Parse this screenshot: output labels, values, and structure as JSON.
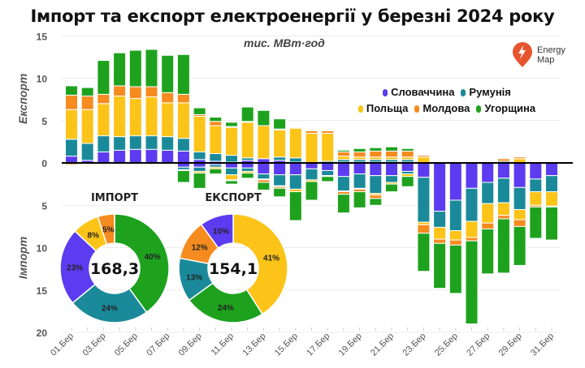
{
  "chart_data": {
    "type": "bar",
    "title": "Імпорт та експорт електроенергії у березні 2024 року",
    "unit": "тис. МВт·год",
    "ylabel_top": "Експорт",
    "ylabel_bottom": "Імпорт",
    "yticks_export": [
      0,
      5,
      10,
      15
    ],
    "yticks_import": [
      5,
      10,
      15,
      20
    ],
    "ylim": [
      -20,
      15
    ],
    "grid": true,
    "legend_position": "top-right",
    "categories": [
      "01.Бер",
      "02.Бер",
      "03.Бер",
      "04.Бер",
      "05.Бер",
      "06.Бер",
      "07.Бер",
      "08.Бер",
      "09.Бер",
      "10.Бер",
      "11.Бер",
      "12.Бер",
      "13.Бер",
      "14.Бер",
      "15.Бер",
      "16.Бер",
      "17.Бер",
      "18.Бер",
      "19.Бер",
      "20.Бер",
      "21.Бер",
      "22.Бер",
      "23.Бер",
      "24.Бер",
      "25.Бер",
      "26.Бер",
      "27.Бер",
      "28.Бер",
      "29.Бер",
      "30.Бер",
      "31.Бер"
    ],
    "xtick_labels": [
      "01.Бер",
      "03.Бер",
      "05.Бер",
      "07.Бер",
      "09.Бер",
      "11.Бер",
      "13.Бер",
      "15.Бер",
      "17.Бер",
      "19.Бер",
      "21.Бер",
      "23.Бер",
      "25.Бер",
      "27.Бер",
      "29.Бер",
      "31.Бер"
    ],
    "series": [
      {
        "name": "Словаччина",
        "color": "#5b3cf0",
        "export": [
          0.8,
          0.3,
          1.3,
          1.5,
          1.6,
          1.6,
          1.5,
          1.4,
          0.4,
          0.2,
          0.1,
          0.3,
          0.5,
          0.3,
          0.1,
          0,
          0,
          0.1,
          0.1,
          0.1,
          0.1,
          0.1,
          0,
          0,
          0,
          0,
          0,
          0,
          0,
          0,
          0
        ],
        "import": [
          0,
          0,
          0,
          0,
          0,
          0,
          0,
          0.5,
          0.5,
          0.2,
          0.6,
          0.6,
          1.3,
          1.4,
          1.4,
          0.7,
          0.9,
          1.6,
          1.3,
          1.5,
          1.5,
          1.0,
          1.7,
          5.7,
          4.4,
          3.0,
          2.3,
          1.8,
          2.9,
          1.9,
          1.5
        ]
      },
      {
        "name": "Румунія",
        "color": "#1a8a9a",
        "export": [
          2.0,
          2.0,
          1.9,
          1.6,
          1.6,
          1.6,
          1.6,
          1.5,
          0.9,
          0.9,
          0.8,
          0.3,
          0,
          0.4,
          0.5,
          0,
          0.2,
          0.3,
          0.3,
          0.3,
          0.3,
          0.3,
          0,
          0,
          0,
          0,
          0,
          0.2,
          0,
          0,
          0
        ],
        "import": [
          0,
          0,
          0,
          0,
          0,
          0,
          0,
          0.3,
          0.5,
          0.3,
          0.8,
          0.4,
          0.6,
          1.3,
          1.7,
          1.3,
          0.6,
          1.7,
          1.7,
          2.1,
          0.8,
          0.3,
          5.3,
          1.9,
          3.6,
          3.9,
          2.5,
          2.9,
          2.6,
          1.5,
          1.9
        ]
      },
      {
        "name": "Польща",
        "color": "#fcc419",
        "export": [
          3.5,
          4.0,
          3.8,
          4.8,
          4.4,
          4.6,
          4.0,
          4.2,
          4.2,
          3.3,
          3.3,
          4.2,
          3.9,
          3.2,
          3.5,
          3.5,
          3.3,
          0.4,
          0.3,
          0.3,
          0.3,
          0.3,
          0.7,
          0,
          0,
          0,
          0,
          0,
          0.5,
          0,
          0
        ],
        "import": [
          0,
          0,
          0,
          0,
          0,
          0,
          0,
          0.1,
          0.2,
          0.2,
          0.6,
          0.2,
          0.1,
          0.1,
          0.3,
          0.2,
          0.1,
          0.1,
          0.1,
          0.2,
          0.2,
          0.3,
          0.3,
          1.4,
          1.1,
          1.9,
          2.3,
          1.5,
          1.2,
          1.6,
          1.7
        ]
      },
      {
        "name": "Молдова",
        "color": "#f68b1f",
        "export": [
          1.7,
          1.6,
          1.1,
          1.2,
          1.4,
          1.2,
          1.2,
          1.0,
          0.2,
          0.5,
          0.1,
          0.1,
          0,
          0.1,
          0,
          0.3,
          0.3,
          0.5,
          0.6,
          0.7,
          0.7,
          0.7,
          0.2,
          0,
          0,
          0,
          0,
          0.3,
          0.2,
          0,
          0
        ],
        "import": [
          0.2,
          0,
          0,
          0,
          0,
          0,
          0,
          0,
          0,
          0,
          0.1,
          0,
          0.3,
          0.2,
          0,
          0,
          0,
          0.3,
          0.3,
          0.4,
          0,
          0,
          1.0,
          0.5,
          0.6,
          0.4,
          0.7,
          0.4,
          0.8,
          0.2,
          0.1
        ]
      },
      {
        "name": "Угорщина",
        "color": "#1ea21e",
        "export": [
          1.1,
          1.0,
          4.0,
          3.9,
          4.3,
          4.4,
          4.4,
          4.7,
          0.8,
          0.5,
          0.5,
          1.7,
          1.8,
          1.2,
          0.1,
          0,
          0,
          0.2,
          0.4,
          0.4,
          0.5,
          0.3,
          0.1,
          0,
          0,
          0,
          0,
          0.1,
          0,
          0,
          0
        ],
        "import": [
          0,
          0,
          0,
          0,
          0,
          0,
          0,
          1.4,
          1.8,
          0.6,
          0.4,
          0.6,
          0.9,
          1.0,
          3.4,
          2.2,
          0.6,
          2.2,
          1.9,
          0.8,
          0.9,
          1.2,
          4.5,
          5.3,
          5.7,
          9.8,
          5.3,
          6.4,
          4.6,
          3.7,
          3.9
        ]
      }
    ],
    "donuts": [
      {
        "title": "ІМПОРТ",
        "total": "168,3",
        "slices": [
          {
            "name": "Угорщина",
            "percent": 40,
            "label": "40%",
            "color": "#1ea21e"
          },
          {
            "name": "Румунія",
            "percent": 24,
            "label": "24%",
            "color": "#1a8a9a"
          },
          {
            "name": "Словаччина",
            "percent": 23,
            "label": "23%",
            "color": "#5b3cf0"
          },
          {
            "name": "Польща",
            "percent": 8,
            "label": "8%",
            "color": "#fcc419"
          },
          {
            "name": "Молдова",
            "percent": 5,
            "label": "5%",
            "color": "#f68b1f"
          }
        ]
      },
      {
        "title": "ЕКСПОРТ",
        "total": "154,1",
        "slices": [
          {
            "name": "Польща",
            "percent": 41,
            "label": "41%",
            "color": "#fcc419"
          },
          {
            "name": "Угорщина",
            "percent": 24,
            "label": "24%",
            "color": "#1ea21e"
          },
          {
            "name": "Румунія",
            "percent": 13,
            "label": "13%",
            "color": "#1a8a9a"
          },
          {
            "name": "Молдова",
            "percent": 12,
            "label": "12%",
            "color": "#f68b1f"
          },
          {
            "name": "Словаччина",
            "percent": 10,
            "label": "10%",
            "color": "#5b3cf0"
          }
        ]
      }
    ]
  },
  "logo": {
    "line1": "Energy",
    "line2": "Map",
    "color": "#e8542e"
  }
}
